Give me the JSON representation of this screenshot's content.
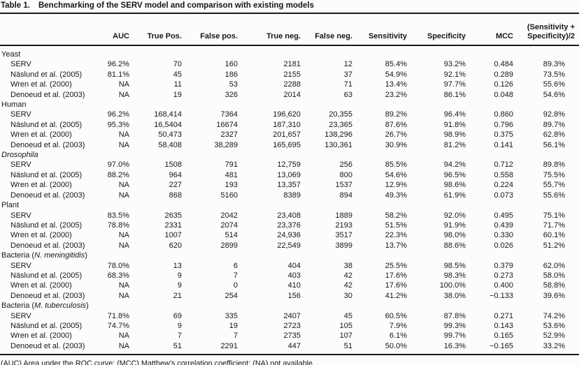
{
  "page": {
    "title_label": "Table 1.",
    "title_text": "Benchmarking of the SERV model and comparison with existing models",
    "footnote": "(AUC) Area under the ROC curve; (MCC) Matthew’s correlation coefficient; (NA) not available."
  },
  "table": {
    "columns": [
      "",
      "AUC",
      "True Pos.",
      "False pos.",
      "True neg.",
      "False neg.",
      "Sensitivity",
      "Specificity",
      "MCC",
      "(Sensitivity +\nSpecificity)/2"
    ],
    "groups": [
      {
        "label": {
          "prefix": "Yeast",
          "italic": "",
          "suffix": ""
        },
        "rows": [
          {
            "label": "SERV",
            "values": [
              "96.2%",
              "70",
              "160",
              "2181",
              "12",
              "85.4%",
              "93.2%",
              "0.484",
              "89.3%"
            ]
          },
          {
            "label": "Näslund et al. (2005)",
            "values": [
              "81.1%",
              "45",
              "186",
              "2155",
              "37",
              "54.9%",
              "92.1%",
              "0.289",
              "73.5%"
            ]
          },
          {
            "label": "Wren et al. (2000)",
            "values": [
              "NA",
              "11",
              "53",
              "2288",
              "71",
              "13.4%",
              "97.7%",
              "0.126",
              "55.6%"
            ]
          },
          {
            "label": "Denoeud et al. (2003)",
            "values": [
              "NA",
              "19",
              "326",
              "2014",
              "63",
              "23.2%",
              "86.1%",
              "0.048",
              "54.6%"
            ]
          }
        ]
      },
      {
        "label": {
          "prefix": "Human",
          "italic": "",
          "suffix": ""
        },
        "rows": [
          {
            "label": "SERV",
            "values": [
              "96.2%",
              "168,414",
              "7364",
              "196,620",
              "20,355",
              "89.2%",
              "96.4%",
              "0.860",
              "92.8%"
            ]
          },
          {
            "label": "Näslund et al. (2005)",
            "values": [
              "95.3%",
              "16,5404",
              "16674",
              "187,310",
              "23,365",
              "87.6%",
              "91.8%",
              "0.796",
              "89.7%"
            ]
          },
          {
            "label": "Wren et al. (2000)",
            "values": [
              "NA",
              "50,473",
              "2327",
              "201,657",
              "138,296",
              "26.7%",
              "98.9%",
              "0.375",
              "62.8%"
            ]
          },
          {
            "label": "Denoeud et al. (2003)",
            "values": [
              "NA",
              "58,408",
              "38,289",
              "165,695",
              "130,361",
              "30.9%",
              "81.2%",
              "0.141",
              "56.1%"
            ]
          }
        ]
      },
      {
        "label": {
          "prefix": "",
          "italic": "Drosophila",
          "suffix": ""
        },
        "rows": [
          {
            "label": "SERV",
            "values": [
              "97.0%",
              "1508",
              "791",
              "12,759",
              "256",
              "85.5%",
              "94.2%",
              "0.712",
              "89.8%"
            ]
          },
          {
            "label": "Näslund et al. (2005)",
            "values": [
              "88.2%",
              "964",
              "481",
              "13,069",
              "800",
              "54.6%",
              "96.5%",
              "0.558",
              "75.5%"
            ]
          },
          {
            "label": "Wren et al. (2000)",
            "values": [
              "NA",
              "227",
              "193",
              "13,357",
              "1537",
              "12.9%",
              "98.6%",
              "0.224",
              "55.7%"
            ]
          },
          {
            "label": "Denoeud et al. (2003)",
            "values": [
              "NA",
              "868",
              "5160",
              "8389",
              "894",
              "49.3%",
              "61.9%",
              "0.073",
              "55.6%"
            ]
          }
        ]
      },
      {
        "label": {
          "prefix": "Plant",
          "italic": "",
          "suffix": ""
        },
        "rows": [
          {
            "label": "SERV",
            "values": [
              "83.5%",
              "2635",
              "2042",
              "23,408",
              "1889",
              "58.2%",
              "92.0%",
              "0.495",
              "75.1%"
            ]
          },
          {
            "label": "Näslund et al. (2005)",
            "values": [
              "78.8%",
              "2331",
              "2074",
              "23,376",
              "2193",
              "51.5%",
              "91.9%",
              "0.439",
              "71.7%"
            ]
          },
          {
            "label": "Wren et al. (2000)",
            "values": [
              "NA",
              "1007",
              "514",
              "24,936",
              "3517",
              "22.3%",
              "98.0%",
              "0.330",
              "60.1%"
            ]
          },
          {
            "label": "Denoeud et al. (2003)",
            "values": [
              "NA",
              "620",
              "2899",
              "22,549",
              "3899",
              "13.7%",
              "88.6%",
              "0.026",
              "51.2%"
            ]
          }
        ]
      },
      {
        "label": {
          "prefix": "Bacteria (",
          "italic": "N. meningitidis",
          "suffix": ")"
        },
        "rows": [
          {
            "label": "SERV",
            "values": [
              "78.0%",
              "13",
              "6",
              "404",
              "38",
              "25.5%",
              "98.5%",
              "0.379",
              "62.0%"
            ]
          },
          {
            "label": "Näslund et al. (2005)",
            "values": [
              "68.3%",
              "9",
              "7",
              "403",
              "42",
              "17.6%",
              "98.3%",
              "0.273",
              "58.0%"
            ]
          },
          {
            "label": "Wren et al. (2000)",
            "values": [
              "NA",
              "9",
              "0",
              "410",
              "42",
              "17.6%",
              "100.0%",
              "0.400",
              "58.8%"
            ]
          },
          {
            "label": "Denoeud et al. (2003)",
            "values": [
              "NA",
              "21",
              "254",
              "156",
              "30",
              "41.2%",
              "38.0%",
              "−0.133",
              "39.6%"
            ]
          }
        ]
      },
      {
        "label": {
          "prefix": "Bacteria (",
          "italic": "M. tuberculosis",
          "suffix": ")"
        },
        "rows": [
          {
            "label": "SERV",
            "values": [
              "71.8%",
              "69",
              "335",
              "2407",
              "45",
              "60.5%",
              "87.8%",
              "0.271",
              "74.2%"
            ]
          },
          {
            "label": "Näslund et al. (2005)",
            "values": [
              "74.7%",
              "9",
              "19",
              "2723",
              "105",
              "7.9%",
              "99.3%",
              "0.143",
              "53.6%"
            ]
          },
          {
            "label": "Wren et al. (2000)",
            "values": [
              "NA",
              "7",
              "7",
              "2735",
              "107",
              "6.1%",
              "99.7%",
              "0.165",
              "52.9%"
            ]
          },
          {
            "label": "Denoeud et al. (2003)",
            "values": [
              "NA",
              "51",
              "2291",
              "447",
              "51",
              "50.0%",
              "16.3%",
              "−0.165",
              "33.2%"
            ]
          }
        ]
      }
    ]
  }
}
